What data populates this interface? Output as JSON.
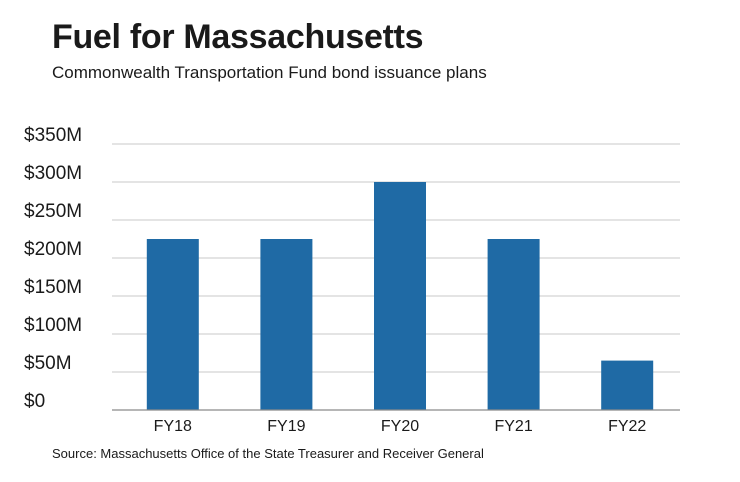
{
  "header": {
    "title": "Fuel for Massachusetts",
    "subtitle": "Commonwealth Transportation Fund bond issuance plans"
  },
  "footer": {
    "source": "Source: Massachusetts Office of the State Treasurer and Receiver General"
  },
  "colors": {
    "bar": "#1f6aa5",
    "grid": "#c8c8c8",
    "axis": "#8a8a8a",
    "text": "#1a1a1a"
  },
  "chart_data": {
    "type": "bar",
    "title": "Fuel for Massachusetts",
    "subtitle": "Commonwealth Transportation Fund bond issuance plans",
    "categories": [
      "FY18",
      "FY19",
      "FY20",
      "FY21",
      "FY22"
    ],
    "values": [
      225,
      225,
      300,
      225,
      65
    ],
    "unit": "$M",
    "ylim": [
      0,
      350
    ],
    "yticks": [
      0,
      50,
      100,
      150,
      200,
      250,
      300,
      350
    ],
    "ytick_labels": [
      "$0",
      "$50M",
      "$100M",
      "$150M",
      "$200M",
      "$250M",
      "$300M",
      "$350M"
    ],
    "xlabel": "",
    "ylabel": "",
    "grid": true
  }
}
